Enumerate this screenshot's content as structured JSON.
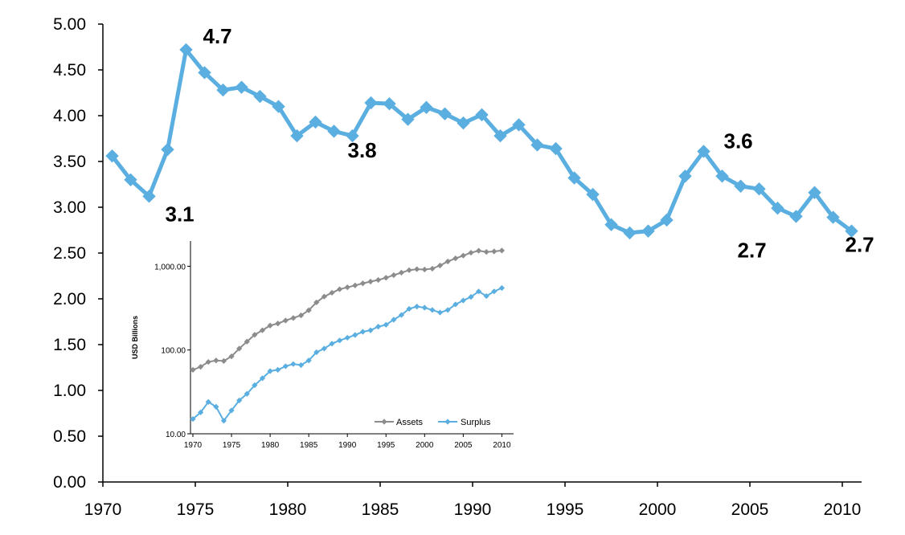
{
  "colors": {
    "main_series": "#5aaee0",
    "assets": "#8c8c8c",
    "surplus": "#5aaee0",
    "axis": "#000000"
  },
  "chart_data": [
    {
      "type": "line",
      "title": "",
      "xlabel": "",
      "ylabel": "",
      "xlim": [
        1970,
        2011
      ],
      "ylim": [
        0,
        5
      ],
      "y_tick_labels": [
        "0.00",
        "0.50",
        "1.00",
        "1.50",
        "2.00",
        "2.50",
        "3.00",
        "3.50",
        "4.00",
        "4.50",
        "5.00"
      ],
      "x_tick_labels": [
        "1970",
        "1975",
        "1980",
        "1985",
        "1990",
        "1995",
        "2000",
        "2005",
        "2010"
      ],
      "grid": false,
      "marker": "diamond",
      "series": [
        {
          "x": [
            1970.5,
            1971.5,
            1972.5,
            1973.5,
            1974.5,
            1975.5,
            1976.5,
            1977.5,
            1978.5,
            1979.5,
            1980.5,
            1981.5,
            1982.5,
            1983.5,
            1984.5,
            1985.5,
            1986.5,
            1987.5,
            1988.5,
            1989.5,
            1990.5,
            1991.5,
            1992.5,
            1993.5,
            1994.5,
            1995.5,
            1996.5,
            1997.5,
            1998.5,
            1999.5,
            2000.5,
            2001.5,
            2002.5,
            2003.5,
            2004.5,
            2005.5,
            2006.5,
            2007.5,
            2008.5,
            2009.5,
            2010.5
          ],
          "values": [
            3.56,
            3.3,
            3.12,
            3.63,
            4.72,
            4.47,
            4.28,
            4.31,
            4.21,
            4.1,
            3.78,
            3.93,
            3.83,
            3.78,
            4.14,
            4.13,
            3.96,
            4.09,
            4.02,
            3.92,
            4.01,
            3.78,
            3.9,
            3.68,
            3.64,
            3.32,
            3.14,
            2.81,
            2.72,
            2.74,
            2.86,
            3.34,
            3.61,
            3.34,
            3.23,
            3.2,
            2.99,
            2.9,
            3.16,
            2.89,
            2.74
          ]
        }
      ],
      "annotations": [
        {
          "text": "4.7",
          "x": 1974.5,
          "y": 4.72
        },
        {
          "text": "3.1",
          "x": 1972.5,
          "y": 3.12
        },
        {
          "text": "3.8",
          "x": 1983.5,
          "y": 3.78
        },
        {
          "text": "3.6",
          "x": 2002.5,
          "y": 3.61
        },
        {
          "text": "2.7",
          "x": 1999.5,
          "y": 2.74
        },
        {
          "text": "2.7",
          "x": 2010.5,
          "y": 2.74
        }
      ]
    },
    {
      "type": "line",
      "title": "",
      "xlabel": "",
      "ylabel": "USD Billions",
      "y_scale": "log",
      "xlim": [
        1970,
        2010
      ],
      "ylim": [
        10,
        2000
      ],
      "y_tick_labels": [
        "10.00",
        "100.00",
        "1,000.00"
      ],
      "x_tick_labels": [
        "1970",
        "1975",
        "1980",
        "1985",
        "1990",
        "1995",
        "2000",
        "2005",
        "2010"
      ],
      "legend": "bottom-right",
      "series": [
        {
          "name": "Assets",
          "x": [
            1970,
            1971,
            1972,
            1973,
            1974,
            1975,
            1976,
            1977,
            1978,
            1979,
            1980,
            1981,
            1982,
            1983,
            1984,
            1985,
            1986,
            1987,
            1988,
            1989,
            1990,
            1991,
            1992,
            1993,
            1994,
            1995,
            1996,
            1997,
            1998,
            1999,
            2000,
            2001,
            2002,
            2003,
            2004,
            2005,
            2006,
            2007,
            2008,
            2009,
            2010
          ],
          "values": [
            58,
            63,
            72,
            75,
            74,
            84,
            104,
            126,
            152,
            172,
            196,
            207,
            225,
            241,
            259,
            298,
            370,
            434,
            482,
            531,
            560,
            590,
            624,
            656,
            686,
            728,
            783,
            838,
            897,
            922,
            913,
            935,
            1020,
            1140,
            1240,
            1339,
            1450,
            1530,
            1480,
            1500,
            1540
          ]
        },
        {
          "name": "Surplus",
          "x": [
            1970,
            1971,
            1972,
            1973,
            1974,
            1975,
            1976,
            1977,
            1978,
            1979,
            1980,
            1981,
            1982,
            1983,
            1984,
            1985,
            1986,
            1987,
            1988,
            1989,
            1990,
            1991,
            1992,
            1993,
            1994,
            1995,
            1996,
            1997,
            1998,
            1999,
            2000,
            2001,
            2002,
            2003,
            2004,
            2005,
            2006,
            2007,
            2008,
            2009,
            2010
          ],
          "values": [
            15,
            18,
            24,
            21,
            14.3,
            19,
            25,
            30,
            38,
            46,
            56,
            58,
            64,
            68,
            66,
            75,
            94,
            104,
            119,
            130,
            140,
            151,
            165,
            172,
            190,
            200,
            230,
            262,
            310,
            330,
            320,
            300,
            280,
            300,
            350,
            390,
            430,
            500,
            440,
            500,
            550
          ]
        }
      ]
    }
  ]
}
